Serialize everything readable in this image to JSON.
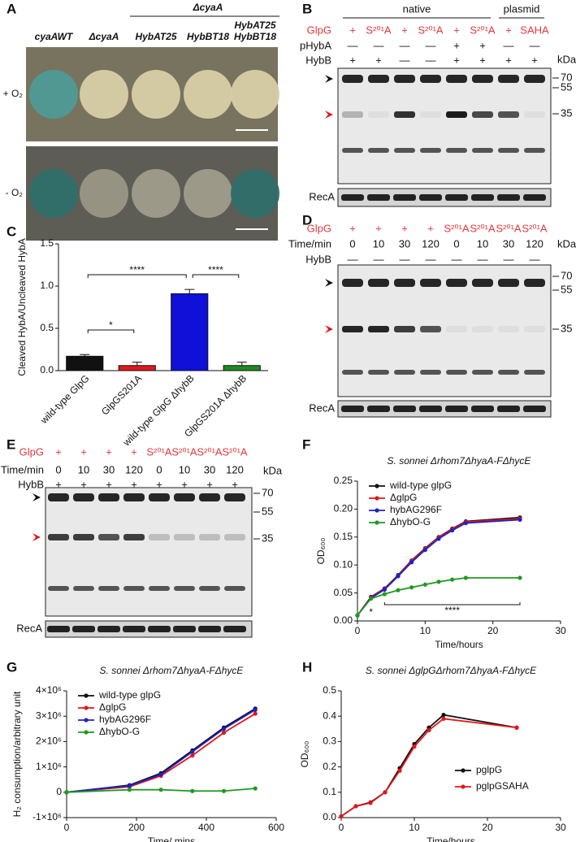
{
  "panel_letters": [
    "A",
    "B",
    "C",
    "D",
    "E",
    "F",
    "G",
    "H"
  ],
  "plates": {
    "group_label": "ΔcyaA",
    "columns": [
      [
        "cyaAWT"
      ],
      [
        "ΔcyaA"
      ],
      [
        "HybAT25"
      ],
      [
        "HybBT18"
      ],
      [
        "HybAT25",
        "HybBT18"
      ]
    ],
    "rows": [
      "+ O₂",
      "- O₂"
    ]
  },
  "blots": [
    {
      "groups": [
        "native",
        "plasmid"
      ],
      "rows": [
        {
          "label": "GlpG",
          "cells": [
            "+",
            "S²⁰¹A",
            "+",
            "S²⁰¹A",
            "+",
            "S²⁰¹A",
            "+",
            "SAHA"
          ]
        },
        {
          "label": "pHybA",
          "cells": [
            "—",
            "—",
            "—",
            "—",
            "+",
            "+",
            "—",
            "—"
          ]
        },
        {
          "label": "HybB",
          "cells": [
            "+",
            "+",
            "—",
            "—",
            "+",
            "+",
            "+",
            "+"
          ]
        }
      ],
      "unit": "kDa",
      "markers": [
        "70",
        "55",
        "35"
      ],
      "loading": "RecA"
    },
    {
      "groups": [],
      "rows": [
        {
          "label": "GlpG",
          "cells": [
            "+",
            "+",
            "+",
            "+",
            "S²⁰¹A",
            "S²⁰¹A",
            "S²⁰¹A",
            "S²⁰¹A"
          ]
        },
        {
          "label": "Time/min",
          "cells": [
            "0",
            "10",
            "30",
            "120",
            "0",
            "10",
            "30",
            "120"
          ]
        },
        {
          "label": "HybB",
          "cells": [
            "—",
            "—",
            "—",
            "—",
            "—",
            "—",
            "—",
            "—"
          ]
        }
      ],
      "unit": "kDa",
      "markers": [
        "70",
        "55",
        "35"
      ],
      "loading": "RecA"
    },
    {
      "groups": [],
      "rows": [
        {
          "label": "GlpG",
          "cells": [
            "+",
            "+",
            "+",
            "+",
            "S²⁰¹A",
            "S²⁰¹A",
            "S²⁰¹A",
            "S²⁰¹A"
          ]
        },
        {
          "label": "Time/min",
          "cells": [
            "0",
            "10",
            "30",
            "120",
            "0",
            "10",
            "30",
            "120"
          ]
        },
        {
          "label": "HybB",
          "cells": [
            "+",
            "+",
            "+",
            "+",
            "+",
            "+",
            "+",
            "+"
          ]
        }
      ],
      "unit": "kDa",
      "markers": [
        "70",
        "55",
        "35"
      ],
      "loading": "RecA"
    }
  ],
  "chart_data": [
    {
      "type": "bar",
      "y_label": "Cleaved HybA/Uncleaved HybA",
      "categories": [
        "wild-type GlpG",
        "GlpGS201A",
        "wild-type GlpG  ΔhybB",
        "GlpGS201A ΔhybB"
      ],
      "values": [
        0.17,
        0.06,
        0.91,
        0.06
      ],
      "errors": [
        0.02,
        0.04,
        0.05,
        0.04
      ],
      "colors": [
        "#111111",
        "#e3161c",
        "#1010d8",
        "#1f8a1f"
      ],
      "ylim": [
        0,
        1.5
      ],
      "yticks": [
        {
          "value": 0,
          "label": "0.0"
        },
        0.5,
        {
          "value": 1,
          "label": "1.0"
        },
        1.5
      ],
      "significance": [
        "*",
        "****",
        "****"
      ]
    },
    {
      "type": "line",
      "title": "S. sonnei Δrhom7ΔhyaA-FΔhycE",
      "x_label": "Time/hours",
      "y_label": "OD₆₀₀",
      "x": [
        0,
        2,
        4,
        6,
        8,
        10,
        12,
        14,
        16,
        24
      ],
      "series": [
        {
          "name": "wild-type glpG",
          "color": "#111111",
          "values": [
            0.01,
            0.043,
            0.058,
            0.082,
            0.108,
            0.13,
            0.15,
            0.165,
            0.178,
            0.185
          ]
        },
        {
          "name": "ΔglpG",
          "color": "#e3161c",
          "values": [
            0.01,
            0.042,
            0.057,
            0.081,
            0.107,
            0.129,
            0.149,
            0.164,
            0.177,
            0.183
          ]
        },
        {
          "name": "hybAG296F",
          "color": "#2020c8",
          "values": [
            0.01,
            0.041,
            0.056,
            0.08,
            0.105,
            0.127,
            0.147,
            0.162,
            0.175,
            0.181
          ]
        },
        {
          "name": "ΔhybO-G",
          "color": "#1f9a1f",
          "values": [
            0.01,
            0.04,
            0.048,
            0.055,
            0.06,
            0.065,
            0.07,
            0.074,
            0.077,
            0.077
          ]
        }
      ],
      "xlim": [
        0,
        30
      ],
      "xticks": [
        0,
        10,
        20,
        30
      ],
      "ylim": [
        0,
        0.25
      ],
      "yticks": [
        {
          "value": 0,
          "label": "0.00"
        },
        0.05,
        {
          "value": 0.1,
          "label": "0.10"
        },
        0.15,
        {
          "value": 0.2,
          "label": "0.20"
        },
        0.25
      ],
      "significance": [
        "*",
        "****"
      ]
    },
    {
      "type": "line",
      "title": "S. sonnei Δrhom7ΔhyaA-FΔhycE",
      "x_label": "Time/ mins",
      "y_label": "H₂ consumption/arbitrary unit",
      "x": [
        0,
        180,
        270,
        360,
        450,
        540
      ],
      "series": [
        {
          "name": "wild-type glpG",
          "color": "#111111",
          "values": [
            0,
            280000,
            750000,
            1650000,
            2550000,
            3300000
          ]
        },
        {
          "name": "ΔglpG",
          "color": "#e3161c",
          "values": [
            0,
            220000,
            650000,
            1450000,
            2350000,
            3100000
          ]
        },
        {
          "name": "hybAG296F",
          "color": "#2020c8",
          "values": [
            0,
            260000,
            700000,
            1600000,
            2500000,
            3250000
          ]
        },
        {
          "name": "ΔhybO-G",
          "color": "#1f9a1f",
          "values": [
            0,
            100000,
            100000,
            50000,
            50000,
            150000
          ]
        }
      ],
      "xlim": [
        0,
        600
      ],
      "xticks": [
        0,
        200,
        400,
        600
      ],
      "ylim": [
        -1000000,
        4000000
      ],
      "yticks": [
        {
          "value": -1000000,
          "label": "-1×10⁶"
        },
        0,
        {
          "value": 1000000,
          "label": "1×10⁶"
        },
        {
          "value": 2000000,
          "label": "2×10⁶"
        },
        {
          "value": 3000000,
          "label": "3×10⁶"
        },
        {
          "value": 4000000,
          "label": "4×10⁶"
        }
      ]
    },
    {
      "type": "line",
      "title": "S. sonnei ΔglpGΔrhom7ΔhyaA-FΔhycE",
      "x_label": "Time/hours",
      "y_label": "OD₆₀₀",
      "x": [
        0,
        2,
        4,
        6,
        8,
        10,
        12,
        14,
        24
      ],
      "series": [
        {
          "name": "pglpG",
          "color": "#111111",
          "values": [
            0.005,
            0.045,
            0.06,
            0.1,
            0.195,
            0.29,
            0.355,
            0.405,
            0.355
          ]
        },
        {
          "name": "pglpGSAHA",
          "color": "#e3161c",
          "values": [
            0.005,
            0.045,
            0.058,
            0.1,
            0.185,
            0.28,
            0.345,
            0.39,
            0.355
          ]
        }
      ],
      "xlim": [
        0,
        30
      ],
      "xticks": [
        0,
        10,
        20,
        30
      ],
      "ylim": [
        0,
        0.5
      ],
      "yticks": [
        {
          "value": 0,
          "label": "0.0"
        },
        0.1,
        0.2,
        0.3,
        0.4,
        0.5
      ]
    }
  ]
}
